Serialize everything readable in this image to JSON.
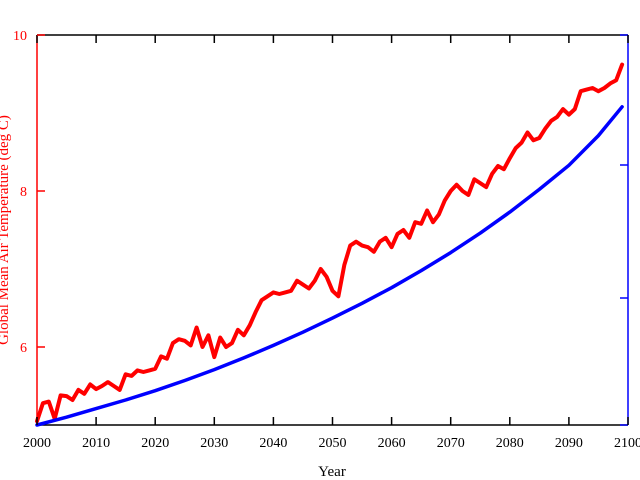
{
  "chart_data": {
    "type": "line",
    "xlabel": "Year",
    "ylabel_left": "Global Mean Air Temperature (deg C)",
    "xlim": [
      2000,
      2100
    ],
    "ylim_left": [
      5,
      10
    ],
    "x_ticks": [
      "2000",
      "2010",
      "2020",
      "2030",
      "2040",
      "2050",
      "2060",
      "2070",
      "2080",
      "2090",
      "2100"
    ],
    "y_ticks_left": [
      "6",
      "8",
      "10"
    ],
    "colors": {
      "temperature": "#ff0000",
      "trend": "#0000ff"
    },
    "series": [
      {
        "axis": "left",
        "color": "#ff0000",
        "x": [
          2000,
          2001,
          2002,
          2003,
          2004,
          2005,
          2006,
          2007,
          2008,
          2009,
          2010,
          2011,
          2012,
          2013,
          2014,
          2015,
          2016,
          2017,
          2018,
          2019,
          2020,
          2021,
          2022,
          2023,
          2024,
          2025,
          2026,
          2027,
          2028,
          2029,
          2030,
          2031,
          2032,
          2033,
          2034,
          2035,
          2036,
          2037,
          2038,
          2039,
          2040,
          2041,
          2042,
          2043,
          2044,
          2045,
          2046,
          2047,
          2048,
          2049,
          2050,
          2051,
          2052,
          2053,
          2054,
          2055,
          2056,
          2057,
          2058,
          2059,
          2060,
          2061,
          2062,
          2063,
          2064,
          2065,
          2066,
          2067,
          2068,
          2069,
          2070,
          2071,
          2072,
          2073,
          2074,
          2075,
          2076,
          2077,
          2078,
          2079,
          2080,
          2081,
          2082,
          2083,
          2084,
          2085,
          2086,
          2087,
          2088,
          2089,
          2090,
          2091,
          2092,
          2093,
          2094,
          2095,
          2096,
          2097,
          2098,
          2099
        ],
        "values": [
          5.05,
          5.28,
          5.3,
          5.08,
          5.38,
          5.37,
          5.32,
          5.45,
          5.4,
          5.52,
          5.46,
          5.5,
          5.55,
          5.5,
          5.45,
          5.65,
          5.63,
          5.7,
          5.68,
          5.7,
          5.72,
          5.88,
          5.85,
          6.05,
          6.1,
          6.08,
          6.02,
          6.25,
          6.0,
          6.15,
          5.87,
          6.12,
          6.0,
          6.05,
          6.22,
          6.15,
          6.28,
          6.45,
          6.6,
          6.65,
          6.7,
          6.68,
          6.7,
          6.72,
          6.85,
          6.8,
          6.75,
          6.85,
          7.0,
          6.9,
          6.72,
          6.65,
          7.05,
          7.3,
          7.35,
          7.3,
          7.28,
          7.22,
          7.35,
          7.4,
          7.28,
          7.45,
          7.5,
          7.4,
          7.6,
          7.58,
          7.75,
          7.6,
          7.7,
          7.88,
          8.0,
          8.08,
          8.0,
          7.95,
          8.15,
          8.1,
          8.05,
          8.22,
          8.32,
          8.28,
          8.42,
          8.55,
          8.62,
          8.75,
          8.65,
          8.68,
          8.8,
          8.9,
          8.95,
          9.05,
          8.98,
          9.05,
          9.28,
          9.3,
          9.32,
          9.28,
          9.32,
          9.38,
          9.42,
          9.62
        ]
      },
      {
        "axis": "left",
        "color": "#0000ff",
        "x": [
          2000,
          2005,
          2010,
          2015,
          2020,
          2025,
          2030,
          2035,
          2040,
          2045,
          2050,
          2055,
          2060,
          2065,
          2070,
          2075,
          2080,
          2085,
          2090,
          2095,
          2099
        ],
        "values": [
          5.0,
          5.1,
          5.21,
          5.32,
          5.44,
          5.57,
          5.71,
          5.86,
          6.02,
          6.19,
          6.37,
          6.56,
          6.76,
          6.98,
          7.21,
          7.46,
          7.73,
          8.02,
          8.33,
          8.71,
          9.08
        ]
      }
    ],
    "grid": false
  }
}
